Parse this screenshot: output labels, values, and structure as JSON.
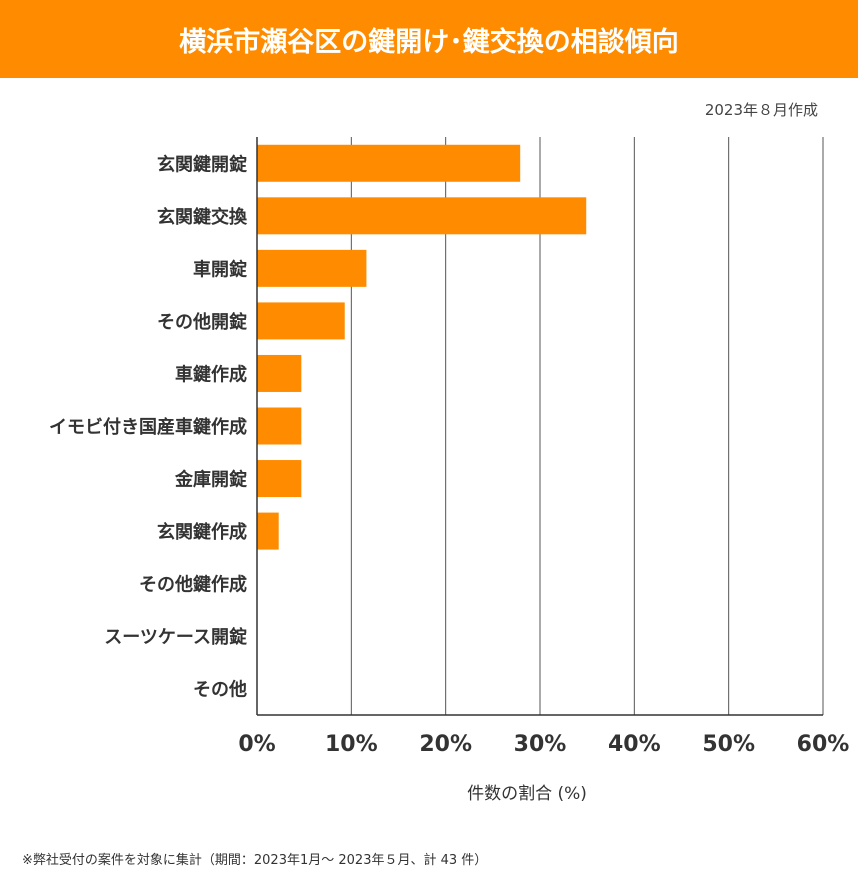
{
  "title": "横浜市瀬谷区の鍵開け･鍵交換の相談傾向",
  "date_note": "2023年８月作成",
  "footnote": "※弊社受付の案件を対象に集計（期間：2023年1月～ 2023年５月、計 43 件）",
  "colors": {
    "bar": "#FF8C00",
    "title_bg": "#FF8C00"
  },
  "chart_data": {
    "type": "bar",
    "orientation": "horizontal",
    "categories": [
      "玄関鍵開錠",
      "玄関鍵交換",
      "車開錠",
      "その他開錠",
      "車鍵作成",
      "イモビ付き国産車鍵作成",
      "金庫開錠",
      "玄関鍵作成",
      "その他鍵作成",
      "スーツケース開錠",
      "その他"
    ],
    "values": [
      27.9,
      34.9,
      11.6,
      9.3,
      4.7,
      4.7,
      4.7,
      2.3,
      0,
      0,
      0
    ],
    "xlabel": "件数の割合 (%)",
    "xlim": [
      0,
      60
    ],
    "xticks": [
      "0%",
      "10%",
      "20%",
      "30%",
      "40%",
      "50%",
      "60%"
    ],
    "grid": "vertical"
  }
}
